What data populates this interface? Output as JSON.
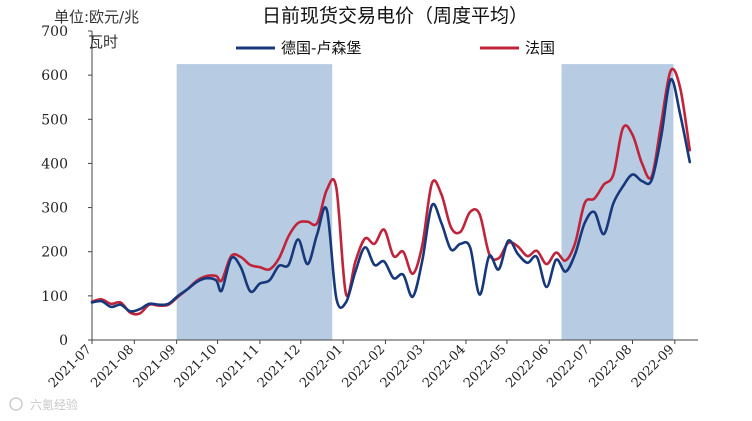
{
  "chart_data": {
    "type": "line",
    "title": "日前现货交易电价（周度平均）",
    "unit_label_line1": "单位:欧元/兆",
    "unit_label_line2": "瓦时",
    "ylim": [
      0,
      700
    ],
    "yticks": [
      0,
      100,
      200,
      300,
      400,
      500,
      600,
      700
    ],
    "xlim": [
      "2021-07-01",
      "2022-09-18"
    ],
    "xtick_labels": [
      "2021-07",
      "2021-08",
      "2021-09",
      "2021-10",
      "2021-11",
      "2021-12",
      "2022-01",
      "2022-02",
      "2022-03",
      "2022-04",
      "2022-05",
      "2022-06",
      "2022-07",
      "2022-08",
      "2022-09"
    ],
    "legend_position": "top",
    "shaded_periods": [
      {
        "start": "2021-09-01",
        "end": "2021-12-24"
      },
      {
        "start": "2022-06-10",
        "end": "2022-08-31"
      }
    ],
    "shade_color": "#b7cce3",
    "series": [
      {
        "name": "德国-卢森堡",
        "color": "#17387a",
        "points": [
          [
            "2021-07-01",
            85
          ],
          [
            "2021-07-08",
            88
          ],
          [
            "2021-07-15",
            75
          ],
          [
            "2021-07-22",
            80
          ],
          [
            "2021-07-29",
            65
          ],
          [
            "2021-08-05",
            70
          ],
          [
            "2021-08-12",
            82
          ],
          [
            "2021-08-19",
            80
          ],
          [
            "2021-08-26",
            82
          ],
          [
            "2021-09-02",
            100
          ],
          [
            "2021-09-09",
            115
          ],
          [
            "2021-09-16",
            132
          ],
          [
            "2021-09-23",
            140
          ],
          [
            "2021-09-30",
            135
          ],
          [
            "2021-10-04",
            112
          ],
          [
            "2021-10-11",
            185
          ],
          [
            "2021-10-18",
            165
          ],
          [
            "2021-10-25",
            110
          ],
          [
            "2021-11-01",
            128
          ],
          [
            "2021-11-08",
            135
          ],
          [
            "2021-11-15",
            168
          ],
          [
            "2021-11-22",
            170
          ],
          [
            "2021-11-29",
            228
          ],
          [
            "2021-12-06",
            172
          ],
          [
            "2021-12-13",
            240
          ],
          [
            "2021-12-20",
            295
          ],
          [
            "2021-12-27",
            95
          ],
          [
            "2022-01-03",
            85
          ],
          [
            "2022-01-10",
            155
          ],
          [
            "2022-01-17",
            210
          ],
          [
            "2022-01-24",
            170
          ],
          [
            "2022-01-31",
            178
          ],
          [
            "2022-02-07",
            140
          ],
          [
            "2022-02-14",
            148
          ],
          [
            "2022-02-21",
            98
          ],
          [
            "2022-02-28",
            180
          ],
          [
            "2022-03-07",
            305
          ],
          [
            "2022-03-14",
            265
          ],
          [
            "2022-03-21",
            205
          ],
          [
            "2022-03-28",
            218
          ],
          [
            "2022-04-04",
            210
          ],
          [
            "2022-04-11",
            103
          ],
          [
            "2022-04-18",
            190
          ],
          [
            "2022-04-25",
            160
          ],
          [
            "2022-05-02",
            225
          ],
          [
            "2022-05-09",
            195
          ],
          [
            "2022-05-16",
            175
          ],
          [
            "2022-05-23",
            188
          ],
          [
            "2022-05-30",
            120
          ],
          [
            "2022-06-06",
            182
          ],
          [
            "2022-06-13",
            155
          ],
          [
            "2022-06-20",
            195
          ],
          [
            "2022-06-27",
            265
          ],
          [
            "2022-07-04",
            290
          ],
          [
            "2022-07-11",
            240
          ],
          [
            "2022-07-18",
            310
          ],
          [
            "2022-07-25",
            348
          ],
          [
            "2022-08-01",
            375
          ],
          [
            "2022-08-08",
            360
          ],
          [
            "2022-08-15",
            362
          ],
          [
            "2022-08-22",
            460
          ],
          [
            "2022-08-29",
            590
          ],
          [
            "2022-09-05",
            510
          ],
          [
            "2022-09-12",
            403
          ]
        ]
      },
      {
        "name": "法国",
        "color": "#c0243b",
        "points": [
          [
            "2021-07-01",
            87
          ],
          [
            "2021-07-08",
            92
          ],
          [
            "2021-07-15",
            82
          ],
          [
            "2021-07-22",
            85
          ],
          [
            "2021-07-29",
            62
          ],
          [
            "2021-08-05",
            60
          ],
          [
            "2021-08-12",
            80
          ],
          [
            "2021-08-19",
            78
          ],
          [
            "2021-08-26",
            80
          ],
          [
            "2021-09-02",
            98
          ],
          [
            "2021-09-09",
            115
          ],
          [
            "2021-09-16",
            135
          ],
          [
            "2021-09-23",
            145
          ],
          [
            "2021-09-30",
            145
          ],
          [
            "2021-10-04",
            135
          ],
          [
            "2021-10-11",
            190
          ],
          [
            "2021-10-18",
            188
          ],
          [
            "2021-10-25",
            170
          ],
          [
            "2021-11-01",
            165
          ],
          [
            "2021-11-08",
            160
          ],
          [
            "2021-11-15",
            185
          ],
          [
            "2021-11-22",
            235
          ],
          [
            "2021-11-29",
            265
          ],
          [
            "2021-12-06",
            268
          ],
          [
            "2021-12-13",
            265
          ],
          [
            "2021-12-20",
            340
          ],
          [
            "2021-12-27",
            345
          ],
          [
            "2022-01-03",
            105
          ],
          [
            "2022-01-10",
            178
          ],
          [
            "2022-01-17",
            230
          ],
          [
            "2022-01-24",
            218
          ],
          [
            "2022-01-31",
            250
          ],
          [
            "2022-02-07",
            190
          ],
          [
            "2022-02-14",
            200
          ],
          [
            "2022-02-21",
            150
          ],
          [
            "2022-02-28",
            215
          ],
          [
            "2022-03-07",
            355
          ],
          [
            "2022-03-14",
            330
          ],
          [
            "2022-03-21",
            255
          ],
          [
            "2022-03-28",
            245
          ],
          [
            "2022-04-04",
            290
          ],
          [
            "2022-04-11",
            285
          ],
          [
            "2022-04-18",
            195
          ],
          [
            "2022-04-25",
            185
          ],
          [
            "2022-05-02",
            220
          ],
          [
            "2022-05-09",
            212
          ],
          [
            "2022-05-16",
            190
          ],
          [
            "2022-05-23",
            202
          ],
          [
            "2022-05-30",
            172
          ],
          [
            "2022-06-06",
            198
          ],
          [
            "2022-06-13",
            180
          ],
          [
            "2022-06-20",
            220
          ],
          [
            "2022-06-27",
            310
          ],
          [
            "2022-07-04",
            320
          ],
          [
            "2022-07-11",
            352
          ],
          [
            "2022-07-18",
            375
          ],
          [
            "2022-07-25",
            480
          ],
          [
            "2022-08-01",
            465
          ],
          [
            "2022-08-08",
            400
          ],
          [
            "2022-08-15",
            370
          ],
          [
            "2022-08-22",
            490
          ],
          [
            "2022-08-29",
            610
          ],
          [
            "2022-09-05",
            570
          ],
          [
            "2022-09-12",
            430
          ]
        ]
      }
    ]
  },
  "watermark": "六氪经验"
}
